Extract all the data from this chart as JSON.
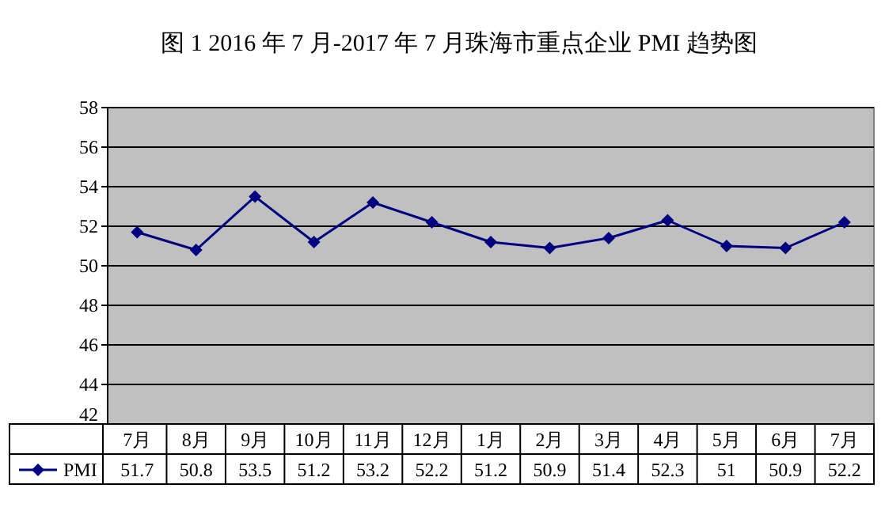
{
  "chart_data": {
    "type": "line",
    "title": "图 1  2016 年 7 月-2017 年 7 月珠海市重点企业 PMI 趋势图",
    "categories": [
      "7月",
      "8月",
      "9月",
      "10月",
      "11月",
      "12月",
      "1月",
      "2月",
      "3月",
      "4月",
      "5月",
      "6月",
      "7月"
    ],
    "series": [
      {
        "name": "PMI",
        "color": "#000080",
        "values": [
          51.7,
          50.8,
          53.5,
          51.2,
          53.2,
          52.2,
          51.2,
          50.9,
          51.4,
          52.3,
          51,
          50.9,
          52.2
        ]
      }
    ],
    "ylim": [
      42,
      58
    ],
    "yticks": [
      42,
      44,
      46,
      48,
      50,
      52,
      54,
      56,
      58
    ],
    "grid": "y",
    "data_labels": true,
    "marker": "diamond",
    "line_style": "solid",
    "legend": "bottom"
  }
}
